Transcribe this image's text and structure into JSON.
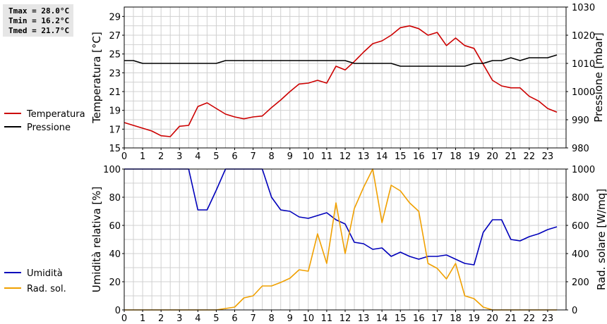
{
  "stats": {
    "tmax": "Tmax = 28.0°C",
    "tmin": "Tmin = 16.2°C",
    "tmed": "Tmed = 21.7°C"
  },
  "colors": {
    "temperature": "#cc0000",
    "pressure": "#000000",
    "humidity": "#0000bb",
    "radiation": "#f0a000",
    "grid": "#d0d0d0"
  },
  "chart_data": [
    {
      "type": "line",
      "x_ticks": [
        "0",
        "1",
        "2",
        "3",
        "4",
        "5",
        "6",
        "7",
        "8",
        "9",
        "10",
        "11",
        "12",
        "13",
        "14",
        "15",
        "16",
        "17",
        "18",
        "19",
        "20",
        "21",
        "22",
        "23"
      ],
      "xlim": [
        0,
        24
      ],
      "ylabel": "Temperatura [°C]",
      "ylim": [
        15,
        30
      ],
      "y_ticks": [
        "15",
        "17",
        "19",
        "21",
        "23",
        "25",
        "27",
        "29"
      ],
      "y2label": "Pressione [mbar]",
      "y2lim": [
        980,
        1030
      ],
      "y2_ticks": [
        "980",
        "990",
        "1000",
        "1010",
        "1020",
        "1030"
      ],
      "grid": true,
      "legend_position": "left",
      "series": [
        {
          "name": "Temperatura",
          "axis": "left",
          "x": [
            0,
            0.5,
            1,
            1.5,
            2,
            2.5,
            3,
            3.5,
            4,
            4.5,
            5,
            5.5,
            6,
            6.5,
            7,
            7.5,
            8,
            8.5,
            9,
            9.5,
            10,
            10.5,
            11,
            11.5,
            12,
            12.5,
            13,
            13.5,
            14,
            14.5,
            15,
            15.5,
            16,
            16.5,
            17,
            17.5,
            18,
            18.5,
            19,
            19.5,
            20,
            20.5,
            21,
            21.5,
            22,
            22.5,
            23,
            23.5
          ],
          "values": [
            17.7,
            17.4,
            17.1,
            16.8,
            16.3,
            16.2,
            17.3,
            17.4,
            19.4,
            19.8,
            19.2,
            18.6,
            18.3,
            18.1,
            18.3,
            18.4,
            19.3,
            20.1,
            21.0,
            21.8,
            21.9,
            22.2,
            21.9,
            23.7,
            23.3,
            24.2,
            25.2,
            26.1,
            26.4,
            27.0,
            27.8,
            28.0,
            27.7,
            27.0,
            27.3,
            25.9,
            26.7,
            25.9,
            25.6,
            23.9,
            22.2,
            21.6,
            21.4,
            21.4,
            20.5,
            20.0,
            19.2,
            18.8
          ]
        },
        {
          "name": "Pressione",
          "axis": "right",
          "x": [
            0,
            0.5,
            1,
            1.5,
            2,
            2.5,
            3,
            3.5,
            4,
            4.5,
            5,
            5.5,
            6,
            6.5,
            7,
            7.5,
            8,
            8.5,
            9,
            9.5,
            10,
            10.5,
            11,
            11.5,
            12,
            12.5,
            13,
            13.5,
            14,
            14.5,
            15,
            15.5,
            16,
            16.5,
            17,
            17.5,
            18,
            18.5,
            19,
            19.5,
            20,
            20.5,
            21,
            21.5,
            22,
            22.5,
            23,
            23.5
          ],
          "values": [
            1011,
            1011,
            1010,
            1010,
            1010,
            1010,
            1010,
            1010,
            1010,
            1010,
            1010,
            1011,
            1011,
            1011,
            1011,
            1011,
            1011,
            1011,
            1011,
            1011,
            1011,
            1011,
            1011,
            1011,
            1011,
            1010,
            1010,
            1010,
            1010,
            1010,
            1009,
            1009,
            1009,
            1009,
            1009,
            1009,
            1009,
            1009,
            1010,
            1010,
            1011,
            1011,
            1012,
            1011,
            1012,
            1012,
            1012,
            1013
          ]
        }
      ]
    },
    {
      "type": "line",
      "x_ticks": [
        "0",
        "1",
        "2",
        "3",
        "4",
        "5",
        "6",
        "7",
        "8",
        "9",
        "10",
        "11",
        "12",
        "13",
        "14",
        "15",
        "16",
        "17",
        "18",
        "19",
        "20",
        "21",
        "22",
        "23"
      ],
      "xlim": [
        0,
        24
      ],
      "ylabel": "Umidità relativa [%]",
      "ylim": [
        0,
        100
      ],
      "y_ticks": [
        "0",
        "20",
        "40",
        "60",
        "80",
        "100"
      ],
      "y2label": "Rad. solare [W/mq]",
      "y2lim": [
        0,
        1000
      ],
      "y2_ticks": [
        "0",
        "200",
        "400",
        "600",
        "800",
        "1000"
      ],
      "grid": true,
      "legend_position": "left",
      "series": [
        {
          "name": "Umidità",
          "axis": "left",
          "x": [
            0,
            0.5,
            1,
            1.5,
            2,
            2.5,
            3,
            3.5,
            4,
            4.5,
            5,
            5.5,
            6,
            6.5,
            7,
            7.5,
            8,
            8.5,
            9,
            9.5,
            10,
            10.5,
            11,
            11.5,
            12,
            12.5,
            13,
            13.5,
            14,
            14.5,
            15,
            15.5,
            16,
            16.5,
            17,
            17.5,
            18,
            18.5,
            19,
            19.5,
            20,
            20.5,
            21,
            21.5,
            22,
            22.5,
            23,
            23.5
          ],
          "values": [
            100,
            100,
            100,
            100,
            100,
            100,
            100,
            100,
            71,
            71,
            85,
            100,
            100,
            100,
            100,
            100,
            80,
            71,
            70,
            66,
            65,
            67,
            69,
            64,
            61,
            48,
            47,
            43,
            44,
            38,
            41,
            38,
            36,
            38,
            38,
            39,
            36,
            33,
            32,
            55,
            64,
            64,
            50,
            49,
            52,
            54,
            57,
            59
          ]
        },
        {
          "name": "Rad. sol.",
          "axis": "right",
          "x": [
            0,
            0.5,
            1,
            1.5,
            2,
            2.5,
            3,
            3.5,
            4,
            4.5,
            5,
            5.5,
            6,
            6.5,
            7,
            7.5,
            8,
            8.5,
            9,
            9.5,
            10,
            10.5,
            11,
            11.5,
            12,
            12.5,
            13,
            13.5,
            14,
            14.5,
            15,
            15.5,
            16,
            16.5,
            17,
            17.5,
            18,
            18.5,
            19,
            19.5,
            20,
            20.5,
            21,
            21.5,
            22,
            22.5,
            23,
            23.5
          ],
          "values": [
            0,
            0,
            0,
            0,
            0,
            0,
            0,
            0,
            0,
            0,
            0,
            10,
            20,
            85,
            100,
            170,
            170,
            195,
            225,
            285,
            275,
            540,
            330,
            760,
            400,
            720,
            870,
            1000,
            620,
            885,
            845,
            760,
            700,
            330,
            295,
            220,
            330,
            100,
            80,
            20,
            0,
            0,
            0,
            0,
            0,
            0,
            0,
            0
          ]
        }
      ]
    }
  ]
}
